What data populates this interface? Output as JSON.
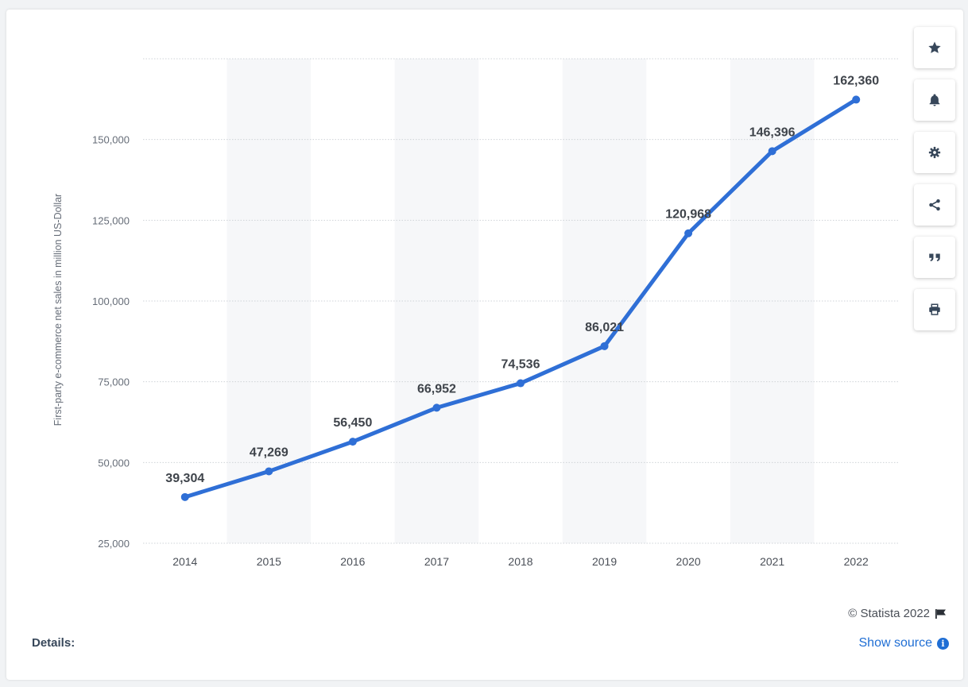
{
  "chart_data": {
    "type": "line",
    "categories": [
      "2014",
      "2015",
      "2016",
      "2017",
      "2018",
      "2019",
      "2020",
      "2021",
      "2022"
    ],
    "series": [
      {
        "values": [
          39304,
          47269,
          56450,
          66952,
          74536,
          86021,
          120968,
          146396,
          162360
        ],
        "data_labels": [
          "39,304",
          "47,269",
          "56,450",
          "66,952",
          "74,536",
          "86,021",
          "120,968",
          "146,396",
          "162,360"
        ]
      }
    ],
    "ylabel": "First-party e-commerce net sales in million US-Dollar",
    "ylim": [
      25000,
      175000
    ],
    "yticks": [
      25000,
      50000,
      75000,
      100000,
      125000,
      150000
    ],
    "ytick_labels": [
      "25,000",
      "50,000",
      "75,000",
      "100,000",
      "125,000",
      "150,000"
    ],
    "grid": true,
    "line_color": "#2f6fd6"
  },
  "toolbar": [
    {
      "icon": "star-icon"
    },
    {
      "icon": "bell-icon"
    },
    {
      "icon": "gear-icon"
    },
    {
      "icon": "share-icon"
    },
    {
      "icon": "quote-icon"
    },
    {
      "icon": "print-icon"
    }
  ],
  "footer": {
    "copyright": "© Statista 2022",
    "details_label": "Details:",
    "source_label": "Show source",
    "info_glyph": "i"
  }
}
